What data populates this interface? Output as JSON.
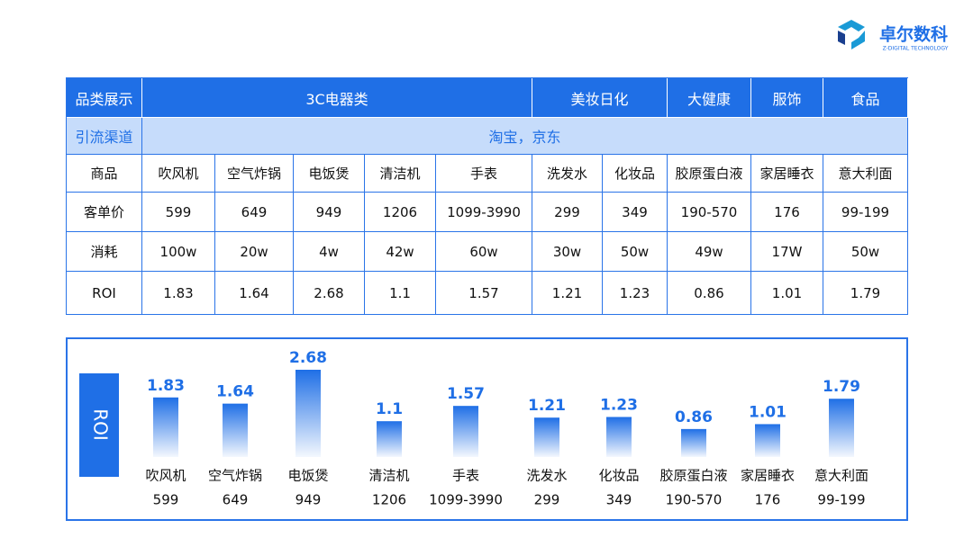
{
  "logo": {
    "name": "卓尔数科",
    "tagline": "Z-DIGITAL TECHNOLOGY"
  },
  "table": {
    "header": [
      {
        "text": "品类展示",
        "span": 1
      },
      {
        "text": "3C电器类",
        "span": 5
      },
      {
        "text": "美妆日化",
        "span": 2
      },
      {
        "text": "大健康",
        "span": 1
      },
      {
        "text": "服饰",
        "span": 1
      },
      {
        "text": "食品",
        "span": 1
      }
    ],
    "channel": {
      "label": "引流渠道",
      "text": "淘宝，京东"
    },
    "rows": [
      [
        "商品",
        "吹风机",
        "空气炸锅",
        "电饭煲",
        "清洁机",
        "手表",
        "洗发水",
        "化妆品",
        "胶原蛋白液",
        "家居睡衣",
        "意大利面"
      ],
      [
        "客单价",
        "599",
        "649",
        "949",
        "1206",
        "1099-3990",
        "299",
        "349",
        "190-570",
        "176",
        "99-199"
      ],
      [
        "消耗",
        "100w",
        "20w",
        "4w",
        "42w",
        "60w",
        "30w",
        "50w",
        "49w",
        "17W",
        "50w"
      ],
      [
        "ROI",
        "1.83",
        "1.64",
        "2.68",
        "1.1",
        "1.57",
        "1.21",
        "1.23",
        "0.86",
        "1.01",
        "1.79"
      ]
    ]
  },
  "chart_data": {
    "type": "bar",
    "title": "ROI",
    "color": "#1f6fe6",
    "categories": [
      "吹风机",
      "空气炸锅",
      "电饭煲",
      "清洁机",
      "手表",
      "洗发水",
      "化妆品",
      "胶原蛋白液",
      "家居睡衣",
      "意大利面"
    ],
    "prices": [
      "599",
      "649",
      "949",
      "1206",
      "1099-3990",
      "299",
      "349",
      "190-570",
      "176",
      "99-199"
    ],
    "values": [
      1.83,
      1.64,
      2.68,
      1.1,
      1.57,
      1.21,
      1.23,
      0.86,
      1.01,
      1.79
    ]
  }
}
